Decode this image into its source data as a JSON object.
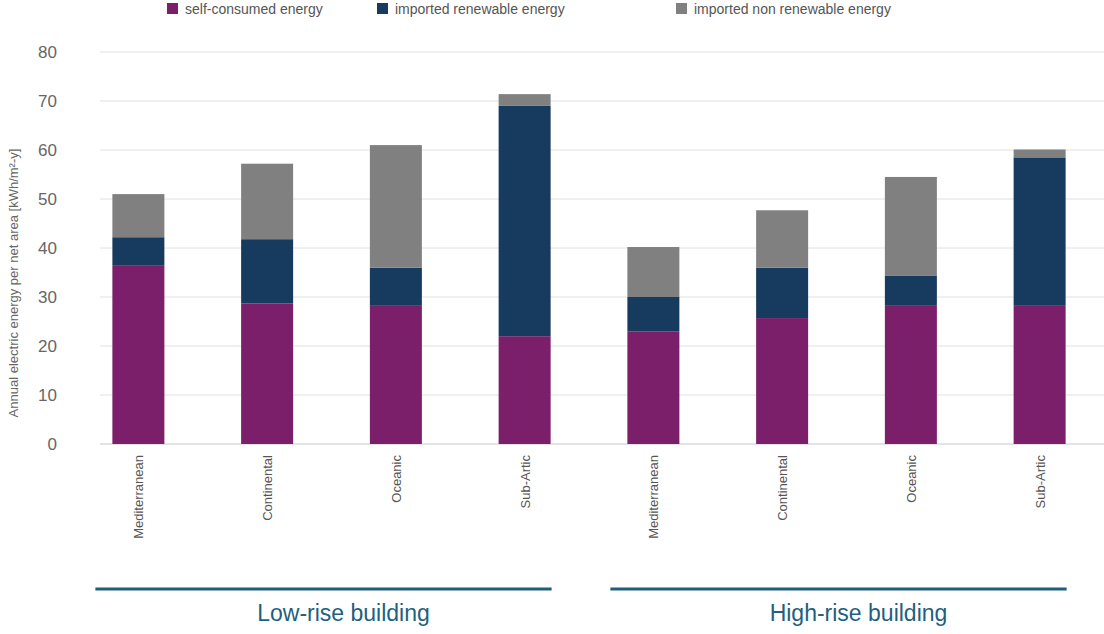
{
  "chart_data": {
    "type": "bar",
    "stacked": true,
    "grid": true,
    "legend": "top",
    "y_label": "Annual electric energy per net area [kWh/m²-y]",
    "categories": [
      "Mediterranean",
      "Continental",
      "Oceanic",
      "Sub-Artic",
      "Mediterranean",
      "Continental",
      "Oceanic",
      "Sub-Artic"
    ],
    "category_groups": [
      "Low-rise building",
      "Low-rise building",
      "Low-rise building",
      "Low-rise building",
      "High-rise building",
      "High-rise building",
      "High-rise building",
      "High-rise building"
    ],
    "ylim": [
      0,
      80
    ],
    "yticks": [
      0,
      10,
      20,
      30,
      40,
      50,
      60,
      70,
      80
    ],
    "series": [
      {
        "name": "self-consumed energy",
        "color": "#7b1f6b",
        "values": [
          36.5,
          28.7,
          28.2,
          22,
          23,
          25.7,
          28.2,
          28.2
        ]
      },
      {
        "name": "imported renewable energy",
        "color": "#173b5f",
        "values": [
          5.7,
          13.1,
          7.8,
          47,
          7,
          10.3,
          6.2,
          30.3
        ]
      },
      {
        "name": "imported non renewable energy",
        "color": "#808080",
        "values": [
          8.8,
          15.4,
          25,
          2.4,
          10.2,
          11.7,
          20.1,
          1.6
        ]
      }
    ]
  }
}
